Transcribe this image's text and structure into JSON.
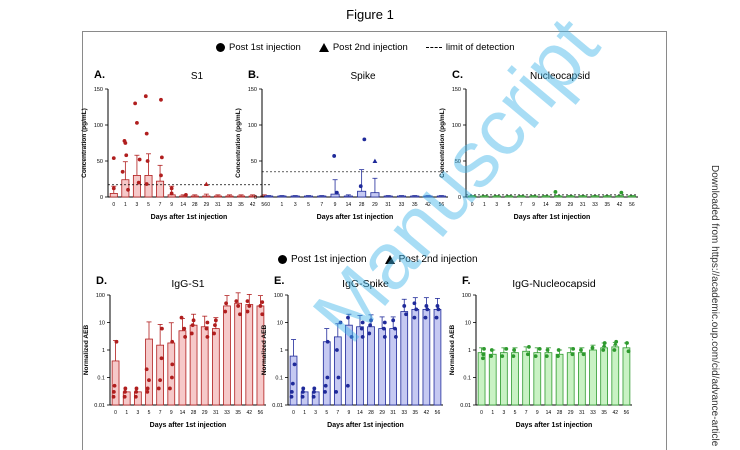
{
  "figure_title": "Figure 1",
  "side_note": "Downloaded from https://academic.oup.com/cid/advance-article",
  "watermark": "Manuscript",
  "legend_top": {
    "post1": "Post 1st injection",
    "post2": "Post 2nd injection",
    "lod": "limit of detection"
  },
  "legend_bottom": {
    "post1": "Post 1st injection",
    "post2": "Post 2nd injection"
  },
  "colors": {
    "red": "#b01e1e",
    "red_fill": "#f6c9c9",
    "blue": "#1f2a9a",
    "blue_fill": "#c5c9f2",
    "green": "#2e9a2e",
    "green_fill": "#c9f2c4"
  },
  "chart_data": [
    {
      "panel": "A.",
      "title": "S1",
      "type": "bar",
      "scale": "linear",
      "color": "red",
      "ylabel": "Concentration (pg/mL)",
      "xlabel": "Days after 1st injection",
      "ylim": [
        0,
        150
      ],
      "yticks": [
        "0",
        "50",
        "100",
        "150"
      ],
      "categories": [
        "0",
        "1",
        "3",
        "5",
        "7",
        "9",
        "14",
        "28",
        "29",
        "31",
        "33",
        "35",
        "42",
        "56"
      ],
      "values": [
        5,
        24,
        30,
        30,
        22,
        3,
        1,
        1,
        1,
        1,
        1,
        1,
        1,
        1
      ],
      "error": [
        10,
        25,
        28,
        30,
        22,
        12,
        2,
        2,
        3,
        2,
        2,
        2,
        2,
        2
      ],
      "lod": 17,
      "points": [
        [
          0,
          54
        ],
        [
          0,
          12
        ],
        [
          1,
          78
        ],
        [
          1,
          75
        ],
        [
          1,
          58
        ],
        [
          1,
          35
        ],
        [
          1,
          10
        ],
        [
          2,
          130
        ],
        [
          2,
          103
        ],
        [
          2,
          52
        ],
        [
          2,
          20
        ],
        [
          3,
          140
        ],
        [
          3,
          88
        ],
        [
          3,
          50
        ],
        [
          3,
          18
        ],
        [
          4,
          135
        ],
        [
          4,
          55
        ],
        [
          4,
          30
        ],
        [
          5,
          12
        ],
        [
          5,
          5
        ],
        [
          6,
          3
        ]
      ],
      "points2": [
        [
          8,
          18
        ]
      ]
    },
    {
      "panel": "B.",
      "title": "Spike",
      "type": "bar",
      "scale": "linear",
      "color": "blue",
      "ylabel": "Concentration (pg/mL)",
      "xlabel": "Days after 1st injection",
      "ylim": [
        0,
        150
      ],
      "yticks": [
        "0",
        "50",
        "100",
        "150"
      ],
      "categories": [
        "0",
        "1",
        "3",
        "5",
        "7",
        "9",
        "14",
        "28",
        "29",
        "31",
        "33",
        "35",
        "42",
        "56"
      ],
      "values": [
        1,
        1,
        1,
        1,
        1,
        4,
        1,
        8,
        6,
        1,
        1,
        1,
        1,
        1
      ],
      "error": [
        1,
        1,
        1,
        1,
        1,
        20,
        2,
        30,
        20,
        1,
        1,
        1,
        1,
        1
      ],
      "lod": 35,
      "points": [
        [
          5,
          57
        ],
        [
          5,
          6
        ],
        [
          7,
          80
        ],
        [
          7,
          15
        ]
      ],
      "points2": [
        [
          8,
          50
        ]
      ]
    },
    {
      "panel": "C.",
      "title": "Nucleocapsid",
      "type": "bar",
      "scale": "linear",
      "color": "green",
      "ylabel": "Concentration (pg/mL)",
      "xlabel": "Days after 1st injection",
      "ylim": [
        0,
        150
      ],
      "yticks": [
        "0",
        "50",
        "100",
        "150"
      ],
      "categories": [
        "0",
        "1",
        "3",
        "5",
        "7",
        "9",
        "14",
        "28",
        "29",
        "31",
        "33",
        "35",
        "42",
        "56"
      ],
      "values": [
        1,
        1,
        1,
        1,
        1,
        1,
        1,
        1,
        1,
        1,
        1,
        1,
        1,
        1
      ],
      "error": [
        1,
        1,
        1,
        1,
        1,
        1,
        1,
        1,
        1,
        1,
        1,
        1,
        1,
        1
      ],
      "lod": 3,
      "points": [
        [
          7,
          7
        ],
        [
          12,
          6
        ]
      ],
      "points2": []
    },
    {
      "panel": "D.",
      "title": "IgG-S1",
      "type": "bar",
      "scale": "log",
      "color": "red",
      "ylabel": "Normalized AEB",
      "xlabel": "Days after 1st injection",
      "ylim": [
        0.01,
        100
      ],
      "yticks": [
        "0.01",
        "0.1",
        "1",
        "10",
        "100"
      ],
      "categories": [
        "0",
        "1",
        "3",
        "5",
        "7",
        "9",
        "14",
        "28",
        "29",
        "31",
        "33",
        "35",
        "42",
        "56"
      ],
      "values": [
        0.4,
        0.03,
        0.03,
        2.5,
        1.5,
        1.8,
        5,
        8,
        7,
        6,
        40,
        50,
        45,
        40
      ],
      "error": [
        1.8,
        0,
        0,
        8,
        7,
        8,
        9,
        12,
        10,
        9,
        55,
        70,
        60,
        55
      ],
      "points": [
        [
          0,
          2
        ],
        [
          0,
          0.05
        ],
        [
          0,
          0.03
        ],
        [
          0,
          0.02
        ],
        [
          1,
          0.04
        ],
        [
          1,
          0.03
        ],
        [
          1,
          0.02
        ],
        [
          2,
          0.04
        ],
        [
          2,
          0.03
        ],
        [
          2,
          0.02
        ],
        [
          3,
          0.2
        ],
        [
          3,
          0.08
        ],
        [
          3,
          0.04
        ],
        [
          3,
          0.03
        ],
        [
          4,
          6
        ],
        [
          4,
          0.5
        ],
        [
          4,
          0.08
        ],
        [
          4,
          0.04
        ],
        [
          5,
          2
        ],
        [
          5,
          0.3
        ],
        [
          5,
          0.1
        ],
        [
          5,
          0.04
        ],
        [
          6,
          15
        ],
        [
          6,
          6
        ],
        [
          6,
          3
        ],
        [
          7,
          12
        ],
        [
          7,
          8
        ],
        [
          7,
          4
        ],
        [
          8,
          10
        ],
        [
          8,
          6
        ],
        [
          8,
          3
        ],
        [
          9,
          12
        ],
        [
          9,
          8
        ],
        [
          9,
          4
        ],
        [
          10,
          50
        ],
        [
          10,
          25
        ],
        [
          11,
          60
        ],
        [
          11,
          40
        ],
        [
          11,
          20
        ],
        [
          12,
          60
        ],
        [
          12,
          40
        ],
        [
          12,
          25
        ],
        [
          13,
          55
        ],
        [
          13,
          40
        ],
        [
          13,
          20
        ]
      ],
      "points2": []
    },
    {
      "panel": "E.",
      "title": "IgG-Spike",
      "type": "bar",
      "scale": "log",
      "color": "blue",
      "ylabel": "Normalized AEB",
      "xlabel": "Days after 1st injection",
      "ylim": [
        0.01,
        100
      ],
      "yticks": [
        "0.01",
        "0.1",
        "1",
        "10",
        "100"
      ],
      "categories": [
        "0",
        "1",
        "3",
        "5",
        "7",
        "9",
        "14",
        "28",
        "29",
        "31",
        "33",
        "35",
        "42",
        "56"
      ],
      "values": [
        0.6,
        0.03,
        0.03,
        2,
        3,
        8,
        7,
        7,
        6,
        6,
        25,
        30,
        30,
        30
      ],
      "error": [
        1.8,
        0,
        0,
        4,
        6,
        12,
        11,
        12,
        10,
        10,
        45,
        50,
        50,
        45
      ],
      "points": [
        [
          0,
          0.3
        ],
        [
          0,
          0.06
        ],
        [
          0,
          0.03
        ],
        [
          0,
          0.02
        ],
        [
          1,
          0.04
        ],
        [
          1,
          0.03
        ],
        [
          1,
          0.02
        ],
        [
          2,
          0.04
        ],
        [
          2,
          0.03
        ],
        [
          2,
          0.02
        ],
        [
          3,
          2
        ],
        [
          3,
          0.1
        ],
        [
          3,
          0.05
        ],
        [
          3,
          0.03
        ],
        [
          4,
          10
        ],
        [
          4,
          1
        ],
        [
          4,
          0.1
        ],
        [
          4,
          0.03
        ],
        [
          5,
          15
        ],
        [
          5,
          3
        ],
        [
          5,
          0.05
        ],
        [
          6,
          10
        ],
        [
          6,
          6
        ],
        [
          6,
          3
        ],
        [
          7,
          12
        ],
        [
          7,
          8
        ],
        [
          7,
          4
        ],
        [
          8,
          10
        ],
        [
          8,
          6
        ],
        [
          8,
          3
        ],
        [
          9,
          12
        ],
        [
          9,
          6
        ],
        [
          9,
          3
        ],
        [
          10,
          40
        ],
        [
          10,
          20
        ],
        [
          11,
          50
        ],
        [
          11,
          30
        ],
        [
          11,
          15
        ],
        [
          12,
          40
        ],
        [
          12,
          30
        ],
        [
          12,
          15
        ],
        [
          13,
          40
        ],
        [
          13,
          30
        ],
        [
          13,
          15
        ]
      ],
      "points2": []
    },
    {
      "panel": "F.",
      "title": "IgG-Nucleocapsid",
      "type": "bar",
      "scale": "log",
      "color": "green",
      "ylabel": "Normalized AEB",
      "xlabel": "Days after 1st injection",
      "ylim": [
        0.01,
        100
      ],
      "yticks": [
        "0.01",
        "0.1",
        "1",
        "10",
        "100"
      ],
      "categories": [
        "0",
        "1",
        "3",
        "5",
        "7",
        "9",
        "14",
        "28",
        "29",
        "31",
        "33",
        "35",
        "42",
        "56"
      ],
      "values": [
        0.8,
        0.7,
        0.8,
        0.8,
        0.9,
        0.8,
        0.8,
        0.7,
        0.8,
        0.8,
        1,
        1.2,
        1.3,
        1.2
      ],
      "error": [
        0.4,
        0.3,
        0.4,
        0.4,
        0.4,
        0.4,
        0.4,
        0.3,
        0.4,
        0.4,
        0.5,
        0.6,
        0.6,
        0.6
      ],
      "points": [
        [
          0,
          1.1
        ],
        [
          0,
          0.7
        ],
        [
          0,
          0.5
        ],
        [
          1,
          1
        ],
        [
          1,
          0.6
        ],
        [
          2,
          1.1
        ],
        [
          2,
          0.6
        ],
        [
          3,
          1
        ],
        [
          3,
          0.6
        ],
        [
          4,
          1.3
        ],
        [
          4,
          0.7
        ],
        [
          5,
          1.1
        ],
        [
          5,
          0.6
        ],
        [
          6,
          1
        ],
        [
          6,
          0.6
        ],
        [
          7,
          1
        ],
        [
          7,
          0.6
        ],
        [
          8,
          1.1
        ],
        [
          8,
          0.7
        ],
        [
          9,
          1
        ],
        [
          9,
          0.7
        ],
        [
          10,
          1.2
        ],
        [
          11,
          1.8
        ],
        [
          11,
          1
        ],
        [
          12,
          2
        ],
        [
          12,
          1
        ],
        [
          13,
          1.8
        ],
        [
          13,
          0.9
        ]
      ],
      "points2": [
        [
          11,
          1.5
        ],
        [
          12,
          1.7
        ]
      ]
    }
  ]
}
